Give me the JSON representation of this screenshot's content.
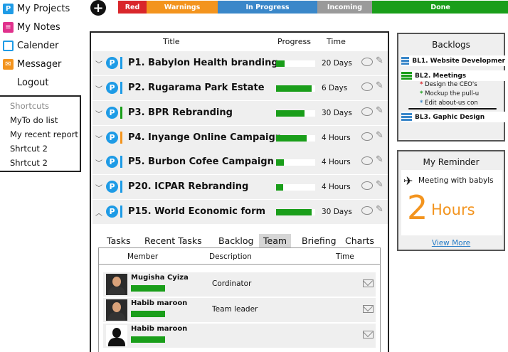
{
  "sidebar": {
    "items": [
      {
        "label": "My Projects",
        "icon": "p-icon"
      },
      {
        "label": "My Notes",
        "icon": "notes-icon"
      },
      {
        "label": "Calender",
        "icon": "calendar-icon"
      },
      {
        "label": "Messager",
        "icon": "envelope-icon"
      },
      {
        "label": "Logout",
        "icon": "logout-icon"
      }
    ],
    "shortcuts_heading": "Shortcuts",
    "shortcuts": [
      "MyTo do list",
      "My recent report",
      "Shrtcut 2",
      "Shrtcut 2"
    ]
  },
  "status_bar": {
    "segments": [
      {
        "label": "Red",
        "color": "#d9262b"
      },
      {
        "label": "Warnings",
        "color": "#f3941e"
      },
      {
        "label": "In Progress",
        "color": "#3a87c9"
      },
      {
        "label": "Incoming",
        "color": "#9a9a9a"
      },
      {
        "label": "Done",
        "color": "#1a9e1a"
      }
    ]
  },
  "projects": {
    "columns": {
      "title": "Title",
      "progress": "Progress",
      "time": "Time"
    },
    "rows": [
      {
        "title": "P1. Babylon Health branding",
        "tag_color": "#1e9be6",
        "progress": 0.22,
        "time": "20 Days",
        "expanded": false
      },
      {
        "title": "P2. Rugarama Park Estate",
        "tag_color": "#1e9be6",
        "progress": 0.9,
        "time": "6 Days",
        "expanded": false
      },
      {
        "title": "P3. BPR Rebranding",
        "tag_color": "#1a9e1a",
        "progress": 0.72,
        "time": "30 Days",
        "expanded": false
      },
      {
        "title": "P4. Inyange Online Campaign",
        "tag_color": "#f3941e",
        "progress": 0.78,
        "time": "4 Hours",
        "expanded": false
      },
      {
        "title": "P5. Burbon Cofee Campaign",
        "tag_color": "#1e9be6",
        "progress": 0.2,
        "time": "4 Hours",
        "expanded": false
      },
      {
        "title": "P20. ICPAR Rebranding",
        "tag_color": "#1e9be6",
        "progress": 0.18,
        "time": "4 Hours",
        "expanded": false
      },
      {
        "title": "P15. World Economic form",
        "tag_color": "#1e9be6",
        "progress": 0.9,
        "time": "30 Days",
        "expanded": true
      }
    ]
  },
  "detail_tabs": {
    "tabs": [
      "Tasks",
      "Recent Tasks",
      "Backlog",
      "Team",
      "Briefing",
      "Charts"
    ],
    "active": "Team"
  },
  "team": {
    "columns": {
      "member": "Member",
      "description": "Description",
      "time": "Time"
    },
    "members": [
      {
        "name": "Mugisha Cyiza",
        "description": "Cordinator",
        "avatar": "photo"
      },
      {
        "name": "Habib maroon",
        "description": "Team leader",
        "avatar": "photo"
      },
      {
        "name": "Habib maroon",
        "description": "",
        "avatar": "silhouette"
      }
    ]
  },
  "backlogs": {
    "title": "Backlogs",
    "items": [
      {
        "label": "BL1. Website Developmer",
        "icon_color": "#3a87c9"
      },
      {
        "label": "BL2. Meetings",
        "icon_color": "#1a9e1a",
        "subitems": [
          {
            "text": "Design the CEO's",
            "star_color": "#d9262b"
          },
          {
            "text": "Mockup the pull-u",
            "star_color": "#1a9e1a"
          },
          {
            "text": "Edit about-us con",
            "star_color": "#3a87c9"
          }
        ]
      },
      {
        "label": "BL3. Gaphic Design",
        "icon_color": "#3a87c9"
      }
    ]
  },
  "reminder": {
    "title": "My Reminder",
    "text": "Meeting with babyls",
    "number": "2",
    "unit": "Hours",
    "link": "View More"
  }
}
